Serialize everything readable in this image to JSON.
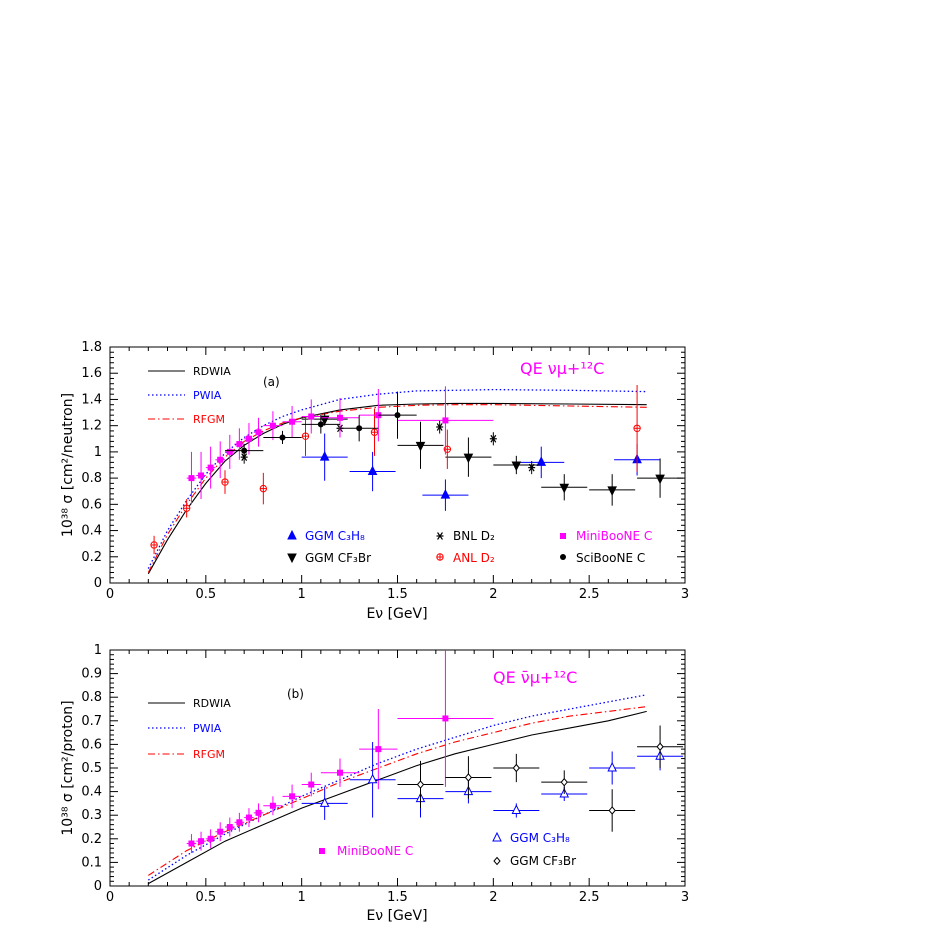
{
  "chart_data": [
    {
      "type": "scatter",
      "panel_label": "(a)",
      "reaction": "QE  νμ+¹²C",
      "xlabel": "Eν [GeV]",
      "ylabel": "10³⁸ σ [cm²/neutron]",
      "xlim": [
        0,
        3
      ],
      "ylim": [
        0,
        1.8
      ],
      "xticks": [
        "0",
        "0.5",
        "1",
        "1.5",
        "2",
        "2.5",
        "3"
      ],
      "yticks": [
        "0",
        "0.2",
        "0.4",
        "0.6",
        "0.8",
        "1",
        "1.2",
        "1.4",
        "1.6",
        "1.8"
      ],
      "legend_lines": [
        "RDWIA",
        "PWIA",
        "RFGM"
      ],
      "legend_markers": [
        "GGM C₃H₈",
        "GGM CF₃Br",
        "BNL D₂",
        "ANL D₂",
        "MiniBooNE C",
        "SciBooNE C"
      ],
      "curves": [
        {
          "name": "RDWIA",
          "color": "#000000",
          "style": "solid",
          "x": [
            0.2,
            0.3,
            0.4,
            0.5,
            0.6,
            0.7,
            0.8,
            0.9,
            1.0,
            1.2,
            1.4,
            1.6,
            1.8,
            2.0,
            2.4,
            2.8
          ],
          "y": [
            0.07,
            0.33,
            0.56,
            0.76,
            0.93,
            1.05,
            1.14,
            1.21,
            1.26,
            1.32,
            1.355,
            1.365,
            1.37,
            1.37,
            1.365,
            1.36
          ]
        },
        {
          "name": "PWIA",
          "color": "#0000ff",
          "style": "dotted",
          "x": [
            0.2,
            0.3,
            0.4,
            0.5,
            0.6,
            0.7,
            0.8,
            0.9,
            1.0,
            1.2,
            1.4,
            1.6,
            1.8,
            2.0,
            2.4,
            2.8
          ],
          "y": [
            0.11,
            0.4,
            0.63,
            0.83,
            0.99,
            1.11,
            1.2,
            1.27,
            1.32,
            1.4,
            1.44,
            1.465,
            1.47,
            1.475,
            1.47,
            1.46
          ]
        },
        {
          "name": "RFGM",
          "color": "#ff0000",
          "style": "dashdot",
          "x": [
            0.2,
            0.3,
            0.4,
            0.5,
            0.6,
            0.7,
            0.8,
            0.9,
            1.0,
            1.2,
            1.4,
            1.6,
            1.8,
            2.0,
            2.4,
            2.8
          ],
          "y": [
            0.08,
            0.37,
            0.6,
            0.8,
            0.96,
            1.08,
            1.16,
            1.22,
            1.26,
            1.31,
            1.34,
            1.355,
            1.36,
            1.36,
            1.35,
            1.34
          ]
        }
      ],
      "series": [
        {
          "name": "GGM C₃H₈",
          "marker": "triangle-up",
          "color": "#0000ff",
          "points": [
            {
              "x": 1.12,
              "y": 0.96,
              "xerr": 0.12,
              "yerr": 0.18
            },
            {
              "x": 1.37,
              "y": 0.85,
              "xerr": 0.12,
              "yerr": 0.15
            },
            {
              "x": 1.75,
              "y": 0.67,
              "xerr": 0.12,
              "yerr": 0.12
            },
            {
              "x": 2.25,
              "y": 0.92,
              "xerr": 0.12,
              "yerr": 0.12
            },
            {
              "x": 2.75,
              "y": 0.94,
              "xerr": 0.12,
              "yerr": 0.12
            }
          ]
        },
        {
          "name": "GGM CF₃Br",
          "marker": "triangle-down",
          "color": "#000000",
          "points": [
            {
              "x": 1.12,
              "y": 1.25,
              "xerr": 0.12,
              "yerr": 0.05
            },
            {
              "x": 1.62,
              "y": 1.05,
              "xerr": 0.12,
              "yerr": 0.18
            },
            {
              "x": 1.87,
              "y": 0.96,
              "xerr": 0.12,
              "yerr": 0.15
            },
            {
              "x": 2.12,
              "y": 0.9,
              "xerr": 0.12,
              "yerr": 0.07
            },
            {
              "x": 2.37,
              "y": 0.73,
              "xerr": 0.12,
              "yerr": 0.1
            },
            {
              "x": 2.62,
              "y": 0.71,
              "xerr": 0.12,
              "yerr": 0.12
            },
            {
              "x": 2.87,
              "y": 0.8,
              "xerr": 0.12,
              "yerr": 0.15
            }
          ]
        },
        {
          "name": "BNL D₂",
          "marker": "asterisk",
          "color": "#000000",
          "points": [
            {
              "x": 0.7,
              "y": 0.96,
              "xerr": 0,
              "yerr": 0.05
            },
            {
              "x": 1.2,
              "y": 1.18,
              "xerr": 0,
              "yerr": 0.05
            },
            {
              "x": 1.72,
              "y": 1.19,
              "xerr": 0,
              "yerr": 0.05
            },
            {
              "x": 2.0,
              "y": 1.1,
              "xerr": 0,
              "yerr": 0.05
            },
            {
              "x": 2.2,
              "y": 0.88,
              "xerr": 0,
              "yerr": 0.05
            }
          ]
        },
        {
          "name": "ANL D₂",
          "marker": "circle-plus",
          "color": "#ff0000",
          "points": [
            {
              "x": 0.23,
              "y": 0.29,
              "xerr": 0,
              "yerr": 0.07
            },
            {
              "x": 0.4,
              "y": 0.57,
              "xerr": 0,
              "yerr": 0.07
            },
            {
              "x": 0.6,
              "y": 0.77,
              "xerr": 0,
              "yerr": 0.09
            },
            {
              "x": 0.8,
              "y": 0.72,
              "xerr": 0,
              "yerr": 0.12
            },
            {
              "x": 1.02,
              "y": 1.12,
              "xerr": 0,
              "yerr": 0.15
            },
            {
              "x": 1.38,
              "y": 1.15,
              "xerr": 0,
              "yerr": 0.18
            },
            {
              "x": 1.76,
              "y": 1.02,
              "xerr": 0,
              "yerr": 0.15
            },
            {
              "x": 2.75,
              "y": 1.18,
              "xerr": 0,
              "yerr": 0.33
            }
          ]
        },
        {
          "name": "MiniBooNE C",
          "marker": "square",
          "color": "#ff00ff",
          "points": [
            {
              "x": 0.425,
              "y": 0.8,
              "xerr": 0.025,
              "yerr": 0.2
            },
            {
              "x": 0.475,
              "y": 0.82,
              "xerr": 0.025,
              "yerr": 0.18
            },
            {
              "x": 0.525,
              "y": 0.88,
              "xerr": 0.025,
              "yerr": 0.16
            },
            {
              "x": 0.575,
              "y": 0.94,
              "xerr": 0.025,
              "yerr": 0.14
            },
            {
              "x": 0.625,
              "y": 1.0,
              "xerr": 0.025,
              "yerr": 0.13
            },
            {
              "x": 0.675,
              "y": 1.06,
              "xerr": 0.025,
              "yerr": 0.12
            },
            {
              "x": 0.725,
              "y": 1.1,
              "xerr": 0.025,
              "yerr": 0.12
            },
            {
              "x": 0.775,
              "y": 1.15,
              "xerr": 0.025,
              "yerr": 0.11
            },
            {
              "x": 0.85,
              "y": 1.2,
              "xerr": 0.05,
              "yerr": 0.11
            },
            {
              "x": 0.95,
              "y": 1.23,
              "xerr": 0.05,
              "yerr": 0.12
            },
            {
              "x": 1.05,
              "y": 1.27,
              "xerr": 0.05,
              "yerr": 0.13
            },
            {
              "x": 1.2,
              "y": 1.26,
              "xerr": 0.1,
              "yerr": 0.15
            },
            {
              "x": 1.4,
              "y": 1.28,
              "xerr": 0.1,
              "yerr": 0.2
            },
            {
              "x": 1.75,
              "y": 1.24,
              "xerr": 0.25,
              "yerr": 0.26
            }
          ]
        },
        {
          "name": "SciBooNE C",
          "marker": "circle",
          "color": "#000000",
          "points": [
            {
              "x": 0.7,
              "y": 1.01,
              "xerr": 0.1,
              "yerr": 0.05
            },
            {
              "x": 0.9,
              "y": 1.11,
              "xerr": 0.1,
              "yerr": 0.05
            },
            {
              "x": 1.1,
              "y": 1.21,
              "xerr": 0.1,
              "yerr": 0.07
            },
            {
              "x": 1.3,
              "y": 1.18,
              "xerr": 0.1,
              "yerr": 0.1
            },
            {
              "x": 1.5,
              "y": 1.28,
              "xerr": 0.1,
              "yerr": 0.18
            }
          ]
        }
      ]
    },
    {
      "type": "scatter",
      "panel_label": "(b)",
      "reaction": "QE  ν̄μ+¹²C",
      "xlabel": "Eν [GeV]",
      "ylabel": "10³⁸ σ [cm²/proton]",
      "xlim": [
        0,
        3
      ],
      "ylim": [
        0,
        1
      ],
      "xticks": [
        "0",
        "0.5",
        "1",
        "1.5",
        "2",
        "2.5",
        "3"
      ],
      "yticks": [
        "0",
        "0.1",
        "0.2",
        "0.3",
        "0.4",
        "0.5",
        "0.6",
        "0.7",
        "0.8",
        "0.9",
        "1"
      ],
      "legend_lines": [
        "RDWIA",
        "PWIA",
        "RFGM"
      ],
      "legend_markers": [
        "MiniBooNE C",
        "GGM C₃H₈",
        "GGM CF₃Br"
      ],
      "curves": [
        {
          "name": "RDWIA",
          "color": "#000000",
          "style": "solid",
          "x": [
            0.2,
            0.4,
            0.6,
            0.8,
            1.0,
            1.2,
            1.4,
            1.6,
            1.8,
            2.0,
            2.2,
            2.4,
            2.6,
            2.8
          ],
          "y": [
            0.01,
            0.1,
            0.19,
            0.26,
            0.33,
            0.39,
            0.45,
            0.51,
            0.56,
            0.6,
            0.64,
            0.67,
            0.7,
            0.74
          ]
        },
        {
          "name": "PWIA",
          "color": "#0000ff",
          "style": "dotted",
          "x": [
            0.2,
            0.4,
            0.6,
            0.8,
            1.0,
            1.2,
            1.4,
            1.6,
            1.8,
            2.0,
            2.2,
            2.4,
            2.6,
            2.8
          ],
          "y": [
            0.025,
            0.13,
            0.22,
            0.3,
            0.38,
            0.45,
            0.52,
            0.58,
            0.63,
            0.68,
            0.72,
            0.75,
            0.78,
            0.81
          ]
        },
        {
          "name": "RFGM",
          "color": "#ff0000",
          "style": "dashdot",
          "x": [
            0.2,
            0.4,
            0.6,
            0.8,
            1.0,
            1.2,
            1.4,
            1.6,
            1.8,
            2.0,
            2.2,
            2.4,
            2.6,
            2.8
          ],
          "y": [
            0.045,
            0.15,
            0.23,
            0.3,
            0.37,
            0.44,
            0.5,
            0.56,
            0.61,
            0.65,
            0.69,
            0.72,
            0.74,
            0.76
          ]
        }
      ],
      "series": [
        {
          "name": "MiniBooNE C",
          "marker": "square",
          "color": "#ff00ff",
          "points": [
            {
              "x": 0.425,
              "y": 0.18,
              "xerr": 0.025,
              "yerr": 0.04
            },
            {
              "x": 0.475,
              "y": 0.19,
              "xerr": 0.025,
              "yerr": 0.04
            },
            {
              "x": 0.525,
              "y": 0.2,
              "xerr": 0.025,
              "yerr": 0.04
            },
            {
              "x": 0.575,
              "y": 0.23,
              "xerr": 0.025,
              "yerr": 0.04
            },
            {
              "x": 0.625,
              "y": 0.25,
              "xerr": 0.025,
              "yerr": 0.04
            },
            {
              "x": 0.675,
              "y": 0.27,
              "xerr": 0.025,
              "yerr": 0.04
            },
            {
              "x": 0.725,
              "y": 0.29,
              "xerr": 0.025,
              "yerr": 0.04
            },
            {
              "x": 0.775,
              "y": 0.31,
              "xerr": 0.025,
              "yerr": 0.04
            },
            {
              "x": 0.85,
              "y": 0.34,
              "xerr": 0.05,
              "yerr": 0.04
            },
            {
              "x": 0.95,
              "y": 0.38,
              "xerr": 0.05,
              "yerr": 0.05
            },
            {
              "x": 1.05,
              "y": 0.43,
              "xerr": 0.05,
              "yerr": 0.05
            },
            {
              "x": 1.2,
              "y": 0.48,
              "xerr": 0.1,
              "yerr": 0.06
            },
            {
              "x": 1.4,
              "y": 0.58,
              "xerr": 0.1,
              "yerr": 0.17
            },
            {
              "x": 1.75,
              "y": 0.71,
              "xerr": 0.25,
              "yerr": 0.29
            }
          ]
        },
        {
          "name": "GGM C₃H₈",
          "marker": "triangle-up-open",
          "color": "#0000ff",
          "points": [
            {
              "x": 1.12,
              "y": 0.35,
              "xerr": 0.12,
              "yerr": 0.07
            },
            {
              "x": 1.37,
              "y": 0.45,
              "xerr": 0.12,
              "yerr": 0.16
            },
            {
              "x": 1.62,
              "y": 0.37,
              "xerr": 0.12,
              "yerr": 0.08
            },
            {
              "x": 1.87,
              "y": 0.4,
              "xerr": 0.12,
              "yerr": 0.05
            },
            {
              "x": 2.12,
              "y": 0.32,
              "xerr": 0.12,
              "yerr": 0.03
            },
            {
              "x": 2.37,
              "y": 0.39,
              "xerr": 0.12,
              "yerr": 0.03
            },
            {
              "x": 2.62,
              "y": 0.5,
              "xerr": 0.12,
              "yerr": 0.07
            },
            {
              "x": 2.87,
              "y": 0.55,
              "xerr": 0.12,
              "yerr": 0.06
            }
          ]
        },
        {
          "name": "GGM CF₃Br",
          "marker": "diamond-open",
          "color": "#000000",
          "points": [
            {
              "x": 1.62,
              "y": 0.43,
              "xerr": 0.12,
              "yerr": 0.1
            },
            {
              "x": 1.87,
              "y": 0.46,
              "xerr": 0.12,
              "yerr": 0.09
            },
            {
              "x": 2.12,
              "y": 0.5,
              "xerr": 0.12,
              "yerr": 0.06
            },
            {
              "x": 2.37,
              "y": 0.44,
              "xerr": 0.12,
              "yerr": 0.05
            },
            {
              "x": 2.62,
              "y": 0.32,
              "xerr": 0.12,
              "yerr": 0.09
            },
            {
              "x": 2.87,
              "y": 0.59,
              "xerr": 0.12,
              "yerr": 0.09
            }
          ]
        }
      ]
    }
  ]
}
